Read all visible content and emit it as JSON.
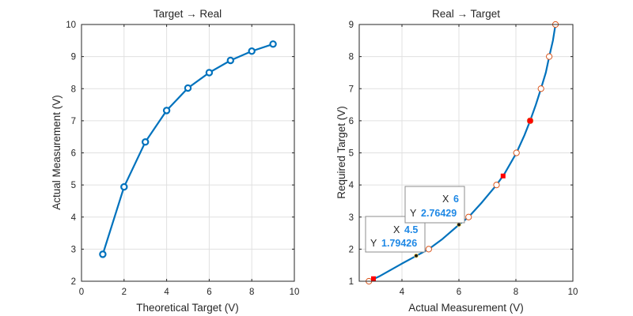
{
  "chart_data": [
    {
      "type": "line",
      "title": "Target → Real",
      "xlabel": "Theoretical Target (V)",
      "ylabel": "Actual Measurement (V)",
      "xlim": [
        0,
        10
      ],
      "ylim": [
        2,
        10
      ],
      "xticks": [
        0,
        2,
        4,
        6,
        8,
        10
      ],
      "yticks": [
        2,
        3,
        4,
        5,
        6,
        7,
        8,
        9,
        10
      ],
      "grid": true,
      "line_color": "#0072BD",
      "series": [
        {
          "x": [
            1,
            2,
            3,
            4,
            5,
            6,
            7,
            8,
            9
          ],
          "y": [
            2.84,
            4.94,
            6.34,
            7.32,
            8.02,
            8.5,
            8.88,
            9.17,
            9.39
          ],
          "marker": "open-circle"
        }
      ]
    },
    {
      "type": "line",
      "title": "Real → Target",
      "xlabel": "Actual Measurement (V)",
      "ylabel": "Required Target (V)",
      "xlim": [
        2.5,
        10
      ],
      "ylim": [
        1,
        9
      ],
      "xticks": [
        4,
        6,
        8,
        10
      ],
      "yticks": [
        1,
        2,
        3,
        4,
        5,
        6,
        7,
        8,
        9
      ],
      "grid": true,
      "line_color": "#0072BD",
      "curve": {
        "x": [
          2.84,
          3.2,
          3.6,
          4.0,
          4.5,
          4.94,
          5.4,
          6.0,
          6.34,
          6.8,
          7.32,
          7.6,
          8.02,
          8.3,
          8.5,
          8.7,
          8.88,
          9.05,
          9.17,
          9.3,
          9.39
        ],
        "y": [
          1.0,
          1.15,
          1.35,
          1.55,
          1.79,
          2.0,
          2.3,
          2.76,
          3.0,
          3.45,
          4.0,
          4.35,
          5.0,
          5.55,
          6.0,
          6.5,
          7.0,
          7.5,
          8.0,
          8.5,
          9.0
        ]
      },
      "sample_points": {
        "x": [
          2.84,
          4.94,
          6.34,
          7.32,
          8.02,
          8.5,
          8.88,
          9.17,
          9.39
        ],
        "y": [
          1,
          2,
          3,
          4,
          5,
          6,
          7,
          8,
          9
        ],
        "marker": "open-circle",
        "color": "#D95319"
      },
      "query_points": {
        "x": [
          3.0,
          7.55,
          8.5
        ],
        "y": [
          1.08,
          4.28,
          6.0
        ],
        "marker": "square",
        "color": "#FF0000"
      },
      "datatips": [
        {
          "x_label": "X",
          "x_value": "4.5",
          "y_label": "Y",
          "y_value": "1.79426",
          "px": 4.5,
          "py": 1.79426
        },
        {
          "x_label": "X",
          "x_value": "6",
          "y_label": "Y",
          "y_value": "2.76429",
          "px": 6,
          "py": 2.76429
        }
      ]
    }
  ]
}
